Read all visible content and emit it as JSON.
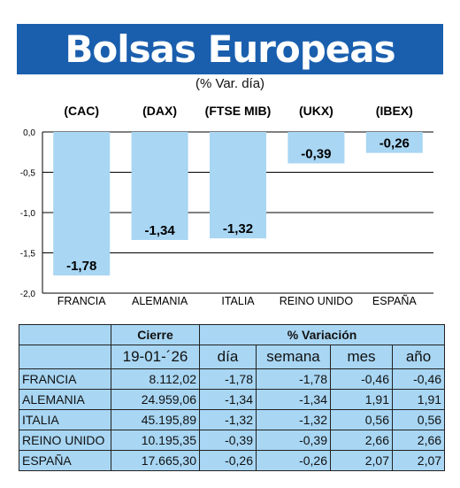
{
  "header": {
    "title": "Bolsas Europeas",
    "subtitle": "(% Var. día)"
  },
  "chart_data": {
    "type": "bar",
    "index_labels": [
      "(CAC)",
      "(DAX)",
      "(FTSE MIB)",
      "(UKX)",
      "(IBEX)"
    ],
    "categories": [
      "FRANCIA",
      "ALEMANIA",
      "ITALIA",
      "REINO UNIDO",
      "ESPAÑA"
    ],
    "values": [
      -1.78,
      -1.34,
      -1.32,
      -0.39,
      -0.26
    ],
    "value_labels": [
      "-1,78",
      "-1,34",
      "-1,32",
      "-0,39",
      "-0,26"
    ],
    "ylim": [
      -2.0,
      0.0
    ],
    "yticks": [
      "0,0",
      "-0,5",
      "-1,0",
      "-1,5",
      "-2,0"
    ],
    "grid": true,
    "colors": {
      "bar": "#a8d6f3",
      "grid": "#000000"
    }
  },
  "table": {
    "group_headers": [
      "Cierre",
      "% Variación"
    ],
    "sub_headers": [
      "19-01-´26",
      "día",
      "semana",
      "mes",
      "año"
    ],
    "rows": [
      [
        "FRANCIA",
        "8.112,02",
        "-1,78",
        "-1,78",
        "-0,46",
        "-0,46"
      ],
      [
        "ALEMANIA",
        "24.959,06",
        "-1,34",
        "-1,34",
        "1,91",
        "1,91"
      ],
      [
        "ITALIA",
        "45.195,89",
        "-1,32",
        "-1,32",
        "0,56",
        "0,56"
      ],
      [
        "REINO UNIDO",
        "10.195,35",
        "-0,39",
        "-0,39",
        "2,66",
        "2,66"
      ],
      [
        "ESPAÑA",
        "17.665,30",
        "-0,26",
        "-0,26",
        "2,07",
        "2,07"
      ]
    ]
  },
  "colors": {
    "banner": "#1a5fae",
    "table_bg": "#a8d6f3"
  }
}
